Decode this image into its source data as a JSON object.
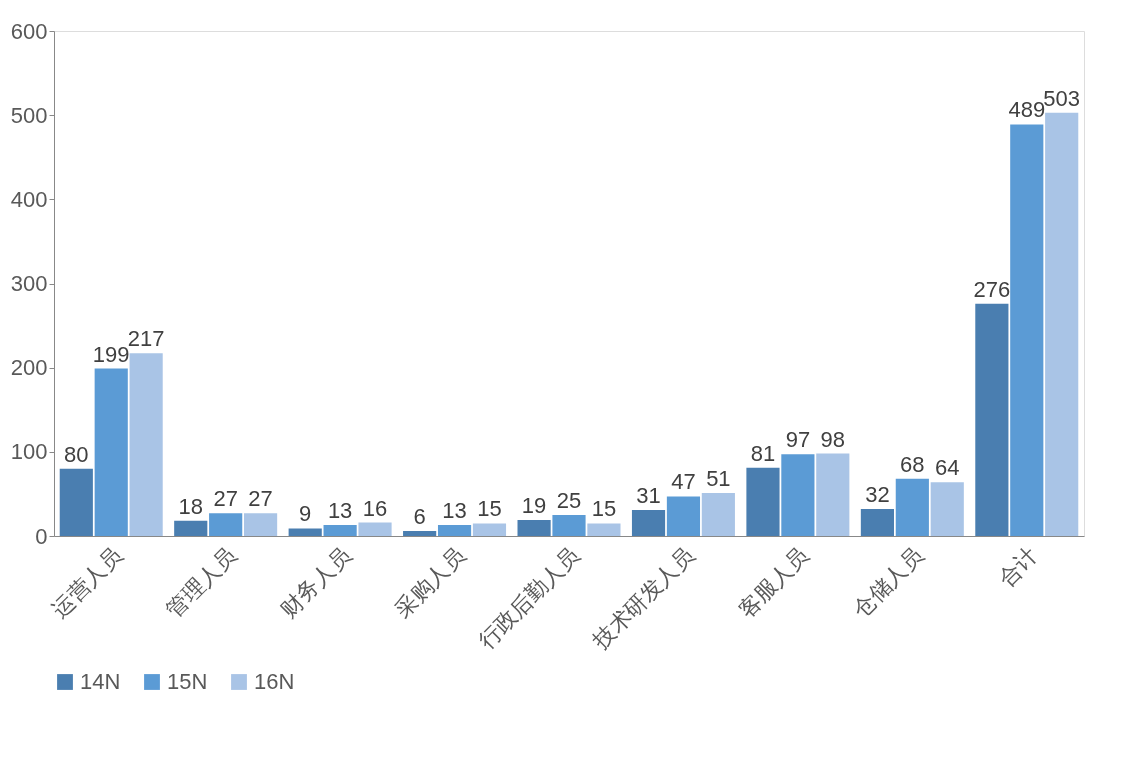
{
  "chart_data": {
    "type": "bar",
    "categories": [
      "运营人员",
      "管理人员",
      "财务人员",
      "采购人员",
      "行政后勤人员",
      "技术研发人员",
      "客服人员",
      "仓储人员",
      "合计"
    ],
    "series": [
      {
        "name": "14N",
        "color": "#4a7eb0",
        "values": [
          80,
          18,
          9,
          6,
          19,
          31,
          81,
          32,
          276
        ]
      },
      {
        "name": "15N",
        "color": "#5b9bd5",
        "values": [
          199,
          27,
          13,
          13,
          25,
          47,
          97,
          68,
          489
        ]
      },
      {
        "name": "16N",
        "color": "#a9c4e6",
        "values": [
          217,
          27,
          16,
          15,
          15,
          51,
          98,
          64,
          503
        ]
      }
    ],
    "ylim": [
      0,
      600
    ],
    "yticks": [
      0,
      100,
      200,
      300,
      400,
      500,
      600
    ],
    "grid": false,
    "legend": "bottom",
    "data_labels": true
  }
}
